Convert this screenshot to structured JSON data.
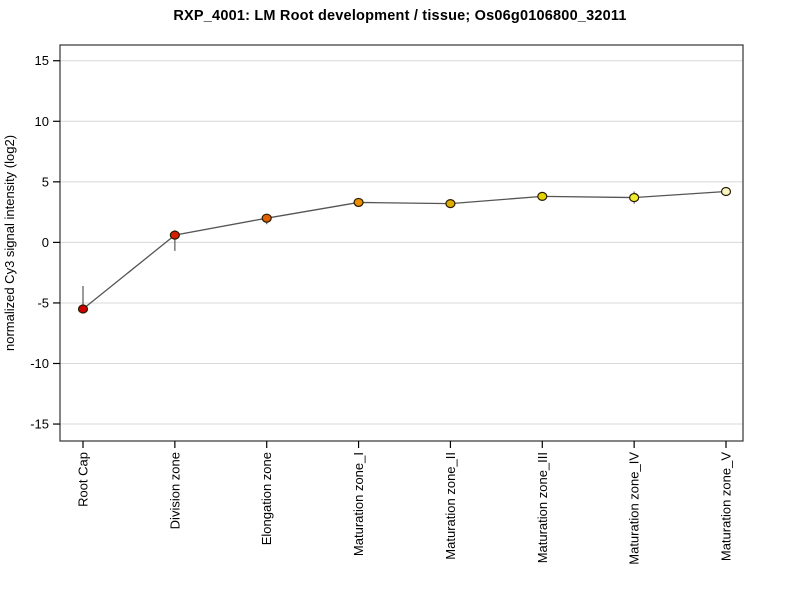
{
  "title": "RXP_4001: LM Root development / tissue; Os06g0106800_32011",
  "chart_data": {
    "type": "line",
    "title": "RXP_4001: LM Root development / tissue; Os06g0106800_32011",
    "xlabel": "",
    "ylabel": "normalized Cy3 signal intensity (log2)",
    "categories": [
      "Root Cap",
      "Division zone",
      "Elongation zone",
      "Maturation zone_I",
      "Maturation zone_II",
      "Maturation zone_III",
      "Maturation zone_IV",
      "Maturation zone_V"
    ],
    "series": [
      {
        "name": "normalized Cy3 signal intensity (log2)",
        "values": [
          -5.5,
          0.6,
          2.0,
          3.3,
          3.2,
          3.8,
          3.7,
          4.2
        ],
        "error_low": [
          -5.8,
          -0.7,
          1.5,
          3.0,
          2.9,
          3.6,
          3.2,
          4.0
        ],
        "error_high": [
          -3.6,
          1.0,
          2.3,
          3.6,
          3.4,
          4.0,
          4.2,
          4.3
        ]
      }
    ],
    "point_colors": [
      "#CC0000",
      "#D42000",
      "#E06000",
      "#EA8E00",
      "#DCAC00",
      "#E3D400",
      "#EDED2E",
      "#F7F7C4"
    ],
    "ylim": [
      -16.4,
      16.3
    ],
    "yticks": [
      -15,
      -10,
      -5,
      0,
      5,
      10,
      15
    ],
    "grid": "horizontal",
    "legend": "none",
    "colors": {
      "line": "#555555",
      "error_bar": "#707070",
      "marker_outline": "#2a1a00",
      "grid_line": "#d8d8d8",
      "plot_border": "#333333",
      "tick": "#000000",
      "text": "#000000",
      "background": "#ffffff"
    }
  }
}
